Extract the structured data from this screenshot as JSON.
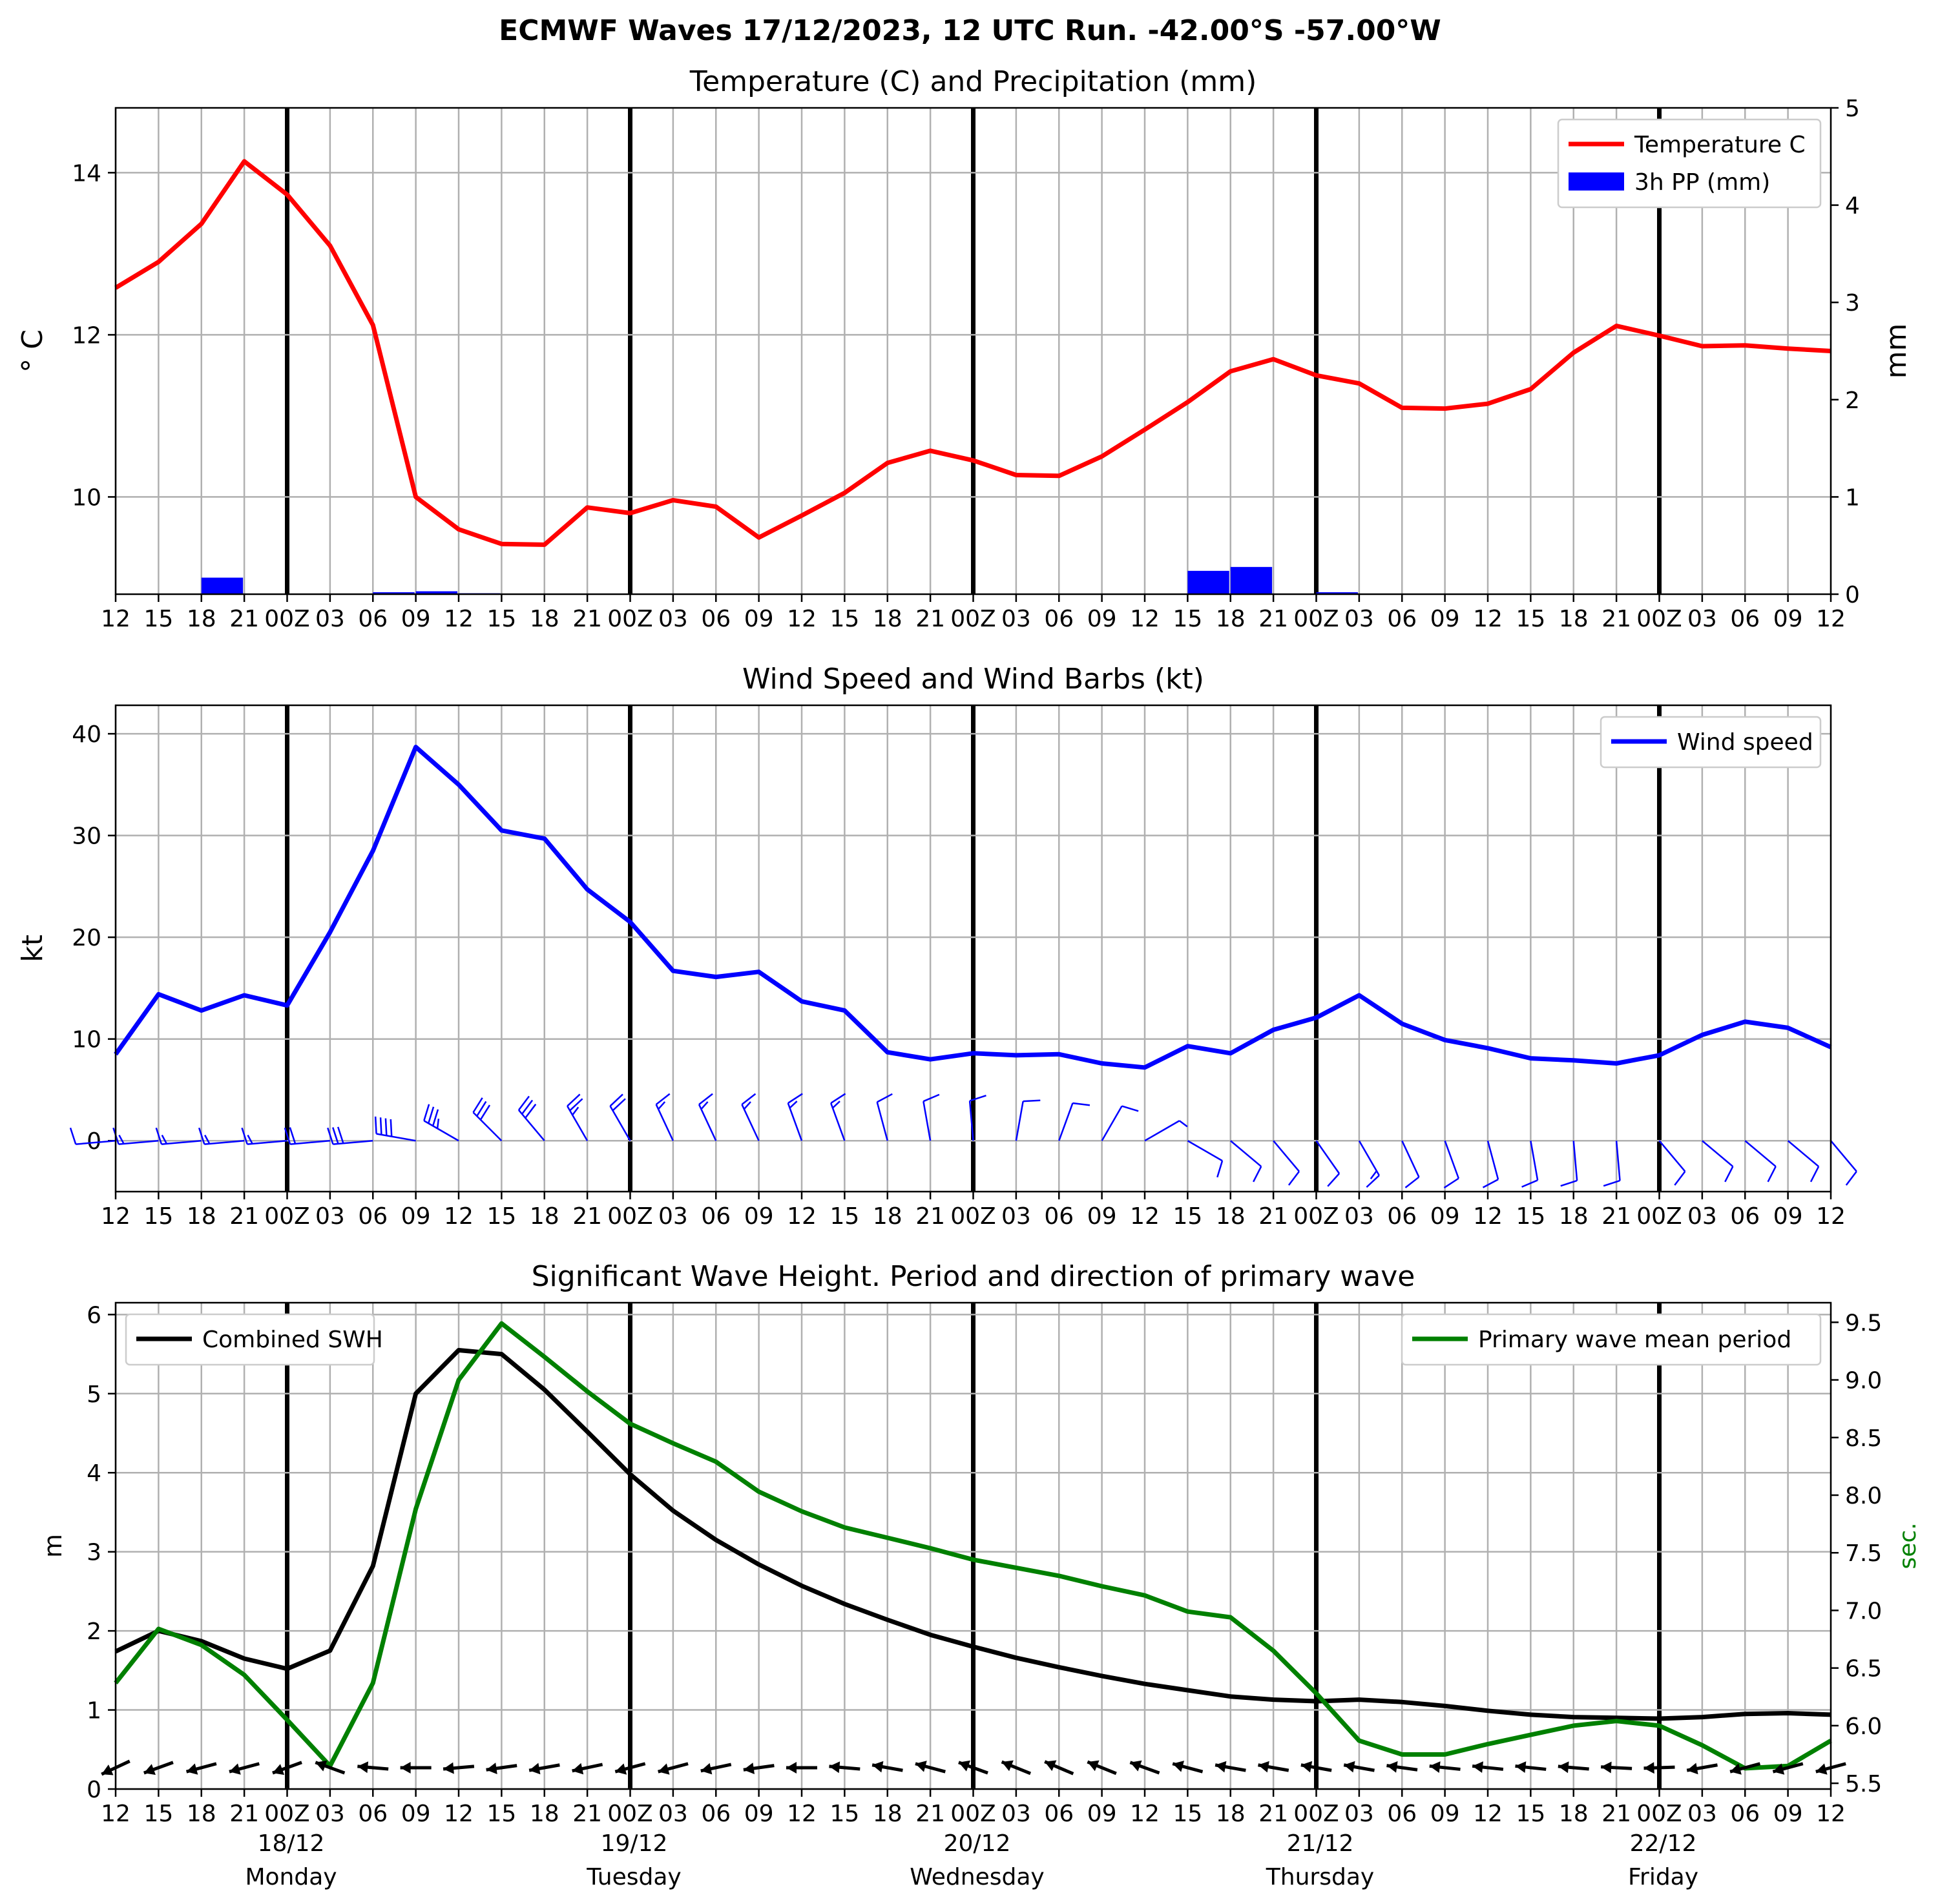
{
  "title": "ECMWF Waves 17/12/2023, 12 UTC Run. -42.00°S -57.00°W",
  "x_axis": {
    "tick_labels": [
      "12",
      "15",
      "18",
      "21",
      "00Z",
      "03",
      "06",
      "09",
      "12",
      "15",
      "18",
      "21",
      "00Z",
      "03",
      "06",
      "09",
      "12",
      "15",
      "18",
      "21",
      "00Z",
      "03",
      "06",
      "09",
      "12",
      "15",
      "18",
      "21",
      "00Z",
      "03",
      "06",
      "09",
      "12",
      "15",
      "18",
      "21",
      "00Z",
      "03",
      "06",
      "09",
      "12"
    ],
    "day_labels": [
      {
        "tick_index": 4,
        "date": "18/12",
        "day": "Monday"
      },
      {
        "tick_index": 12,
        "date": "19/12",
        "day": "Tuesday"
      },
      {
        "tick_index": 20,
        "date": "20/12",
        "day": "Wednesday"
      },
      {
        "tick_index": 28,
        "date": "21/12",
        "day": "Thursday"
      },
      {
        "tick_index": 36,
        "date": "22/12",
        "day": "Friday"
      }
    ],
    "day_boundary_tick_indices": [
      4,
      12,
      20,
      28,
      36
    ]
  },
  "chart_data": [
    {
      "type": "line",
      "title": "Temperature (C) and Precipitation (mm)",
      "ylabel": "° C",
      "y2label": "mm",
      "ylim": [
        8.8,
        14.8
      ],
      "yticks": [
        10,
        12,
        14
      ],
      "y2lim": [
        0,
        5
      ],
      "y2ticks": [
        0,
        1,
        2,
        3,
        4,
        5
      ],
      "grid": true,
      "legend_position": "top-right",
      "series": [
        {
          "name": "Temperature C",
          "type": "line",
          "color": "#ff0000",
          "axis": "left",
          "values": [
            12.58,
            12.9,
            13.37,
            14.14,
            13.73,
            13.1,
            12.12,
            10.0,
            9.6,
            9.42,
            9.41,
            9.87,
            9.8,
            9.96,
            9.88,
            9.5,
            9.77,
            10.05,
            10.42,
            10.57,
            10.45,
            10.27,
            10.26,
            10.5,
            10.83,
            11.17,
            11.55,
            11.7,
            11.5,
            11.4,
            11.1,
            11.09,
            11.15,
            11.33,
            11.78,
            12.11,
            11.99,
            11.86,
            11.87,
            11.83,
            11.8
          ]
        },
        {
          "name": "3h PP (mm)",
          "type": "bar",
          "color": "#0000ff",
          "axis": "right",
          "values": [
            0,
            0,
            0,
            0.17,
            0,
            0,
            0,
            0.02,
            0.03,
            0.01,
            0,
            0,
            0,
            0,
            0,
            0,
            0,
            0,
            0,
            0,
            0,
            0,
            0,
            0,
            0,
            0,
            0.24,
            0.28,
            0,
            0.02,
            0,
            0,
            0,
            0,
            0,
            0,
            0,
            0,
            0,
            0,
            0
          ]
        }
      ]
    },
    {
      "type": "line",
      "title": "Wind Speed and Wind Barbs (kt)",
      "ylabel": "kt",
      "ylim": [
        -5,
        42.8
      ],
      "yticks": [
        0,
        10,
        20,
        30,
        40
      ],
      "grid": true,
      "legend_position": "top-right",
      "series": [
        {
          "name": "Wind speed",
          "color": "#0000ff",
          "values": [
            8.5,
            14.4,
            12.8,
            14.3,
            13.3,
            20.5,
            28.5,
            38.7,
            35.0,
            30.5,
            29.7,
            24.7,
            21.5,
            16.7,
            16.1,
            16.6,
            13.7,
            12.8,
            8.7,
            8.0,
            8.6,
            8.4,
            8.5,
            7.6,
            7.2,
            9.3,
            8.6,
            10.9,
            12.1,
            14.3,
            11.5,
            9.9,
            9.1,
            8.1,
            7.9,
            7.6,
            8.4,
            10.4,
            11.7,
            11.1,
            9.2
          ]
        }
      ],
      "barbs_direction_deg": [
        265,
        265,
        265,
        265,
        265,
        265,
        265,
        280,
        300,
        315,
        320,
        330,
        330,
        335,
        335,
        335,
        340,
        340,
        345,
        350,
        355,
        10,
        20,
        30,
        60,
        120,
        130,
        140,
        145,
        150,
        155,
        160,
        165,
        170,
        175,
        175,
        140,
        130,
        130,
        130,
        140
      ],
      "barbs_color": "#0000ff"
    },
    {
      "type": "line",
      "title": "Significant Wave Height. Period and direction of primary wave",
      "ylabel": "m",
      "y2label": "sec.",
      "ylim": [
        0,
        6.15
      ],
      "yticks": [
        0,
        1,
        2,
        3,
        4,
        5,
        6
      ],
      "y2lim": [
        5.45,
        9.67
      ],
      "y2ticks": [
        5.5,
        6.0,
        6.5,
        7.0,
        7.5,
        8.0,
        8.5,
        9.0,
        9.5
      ],
      "grid": true,
      "legend_position_left": "top-left",
      "legend_position_right": "top-right",
      "series": [
        {
          "name": "Combined SWH",
          "color": "#000000",
          "axis": "left",
          "values": [
            1.74,
            2.0,
            1.87,
            1.65,
            1.52,
            1.75,
            2.82,
            5.0,
            5.55,
            5.5,
            5.05,
            4.52,
            3.98,
            3.52,
            3.15,
            2.84,
            2.57,
            2.34,
            2.14,
            1.95,
            1.8,
            1.66,
            1.54,
            1.43,
            1.33,
            1.25,
            1.17,
            1.13,
            1.11,
            1.13,
            1.1,
            1.05,
            0.99,
            0.94,
            0.91,
            0.9,
            0.89,
            0.91,
            0.95,
            0.96,
            0.94
          ]
        },
        {
          "name": "Primary wave mean period",
          "color": "#008000",
          "axis": "right",
          "values": [
            6.37,
            6.84,
            6.7,
            6.44,
            6.05,
            5.65,
            6.37,
            7.88,
            9.0,
            9.49,
            9.2,
            8.9,
            8.62,
            8.45,
            8.29,
            8.03,
            7.86,
            7.72,
            7.63,
            7.54,
            7.44,
            7.37,
            7.3,
            7.21,
            7.13,
            6.99,
            6.94,
            6.65,
            6.28,
            5.87,
            5.75,
            5.75,
            5.84,
            5.92,
            6.0,
            6.04,
            6.0,
            5.83,
            5.63,
            5.65,
            5.87
          ]
        }
      ],
      "wave_direction_deg": [
        245,
        250,
        255,
        255,
        250,
        290,
        275,
        270,
        265,
        262,
        260,
        258,
        255,
        255,
        258,
        262,
        270,
        275,
        280,
        285,
        290,
        292,
        293,
        292,
        290,
        285,
        280,
        280,
        280,
        280,
        278,
        276,
        276,
        276,
        275,
        273,
        268,
        260,
        255,
        255,
        255
      ],
      "wave_arrow_color": "#000000"
    }
  ]
}
